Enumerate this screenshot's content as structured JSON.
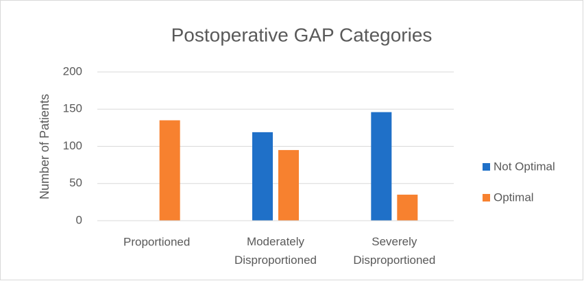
{
  "chart_data": {
    "type": "bar",
    "title": "Postoperative GAP Categories",
    "y_label": "Number of Patients",
    "categories": [
      "Proportioned",
      "Moderately Disproportioned",
      "Severely Disproportioned"
    ],
    "series": [
      {
        "name": "Not Optimal",
        "color": "#1f70c8",
        "values": [
          0,
          119,
          146
        ]
      },
      {
        "name": "Optimal",
        "color": "#f7812f",
        "values": [
          135,
          95,
          35
        ]
      }
    ],
    "ylim": [
      0,
      200
    ],
    "yticks": [
      0,
      50,
      100,
      150,
      200
    ],
    "grid": true,
    "legend": "right"
  }
}
